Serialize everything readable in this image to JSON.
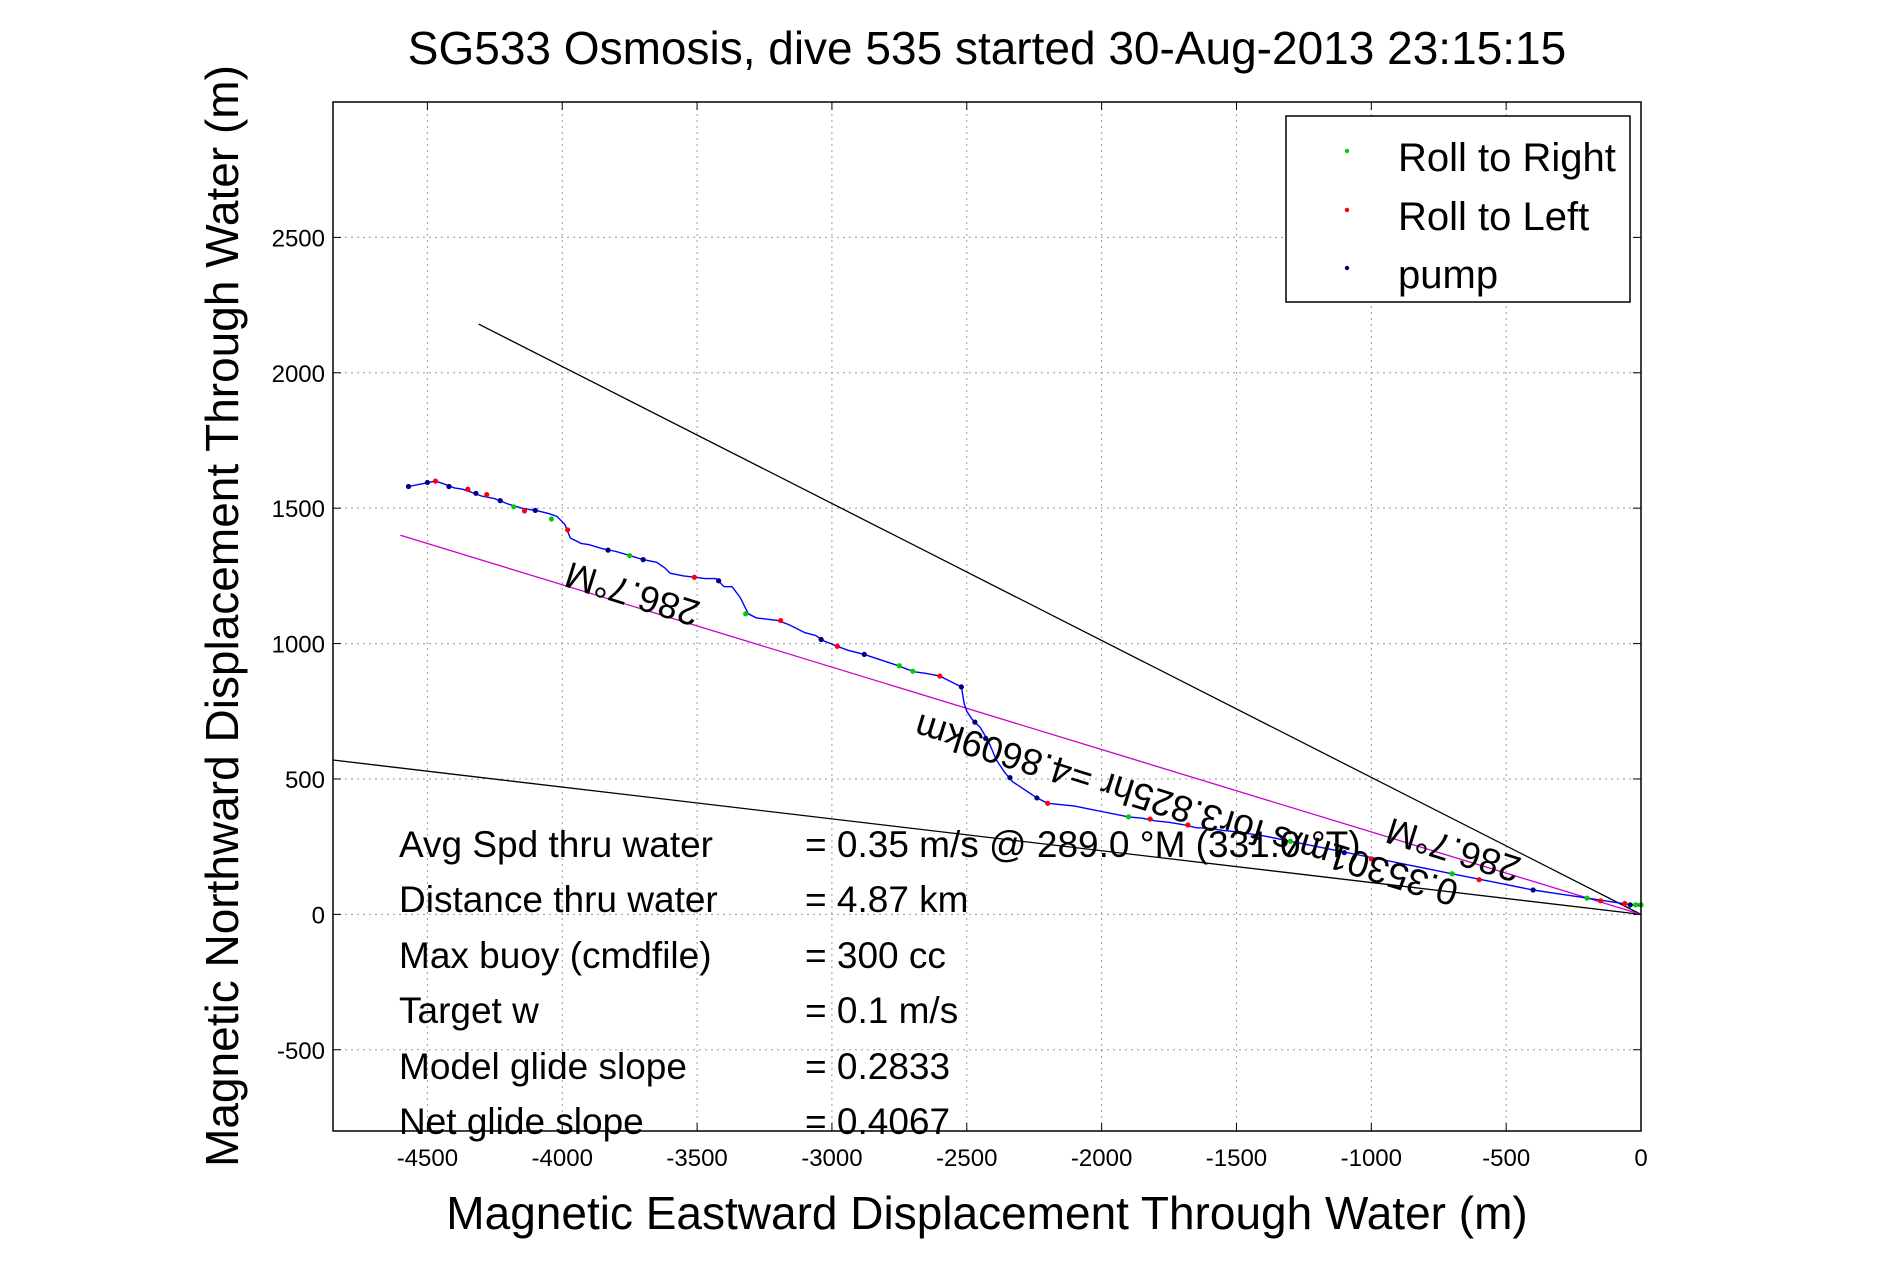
{
  "chart_data": {
    "type": "line",
    "title": "SG533 Osmosis, dive 535 started 30-Aug-2013 23:15:15",
    "xlabel": "Magnetic Eastward Displacement Through Water (m)",
    "ylabel": "Magnetic Northward Displacement Through Water (m)",
    "xlim": [
      -4850,
      0
    ],
    "ylim": [
      -800,
      3000
    ],
    "xticks": [
      -4500,
      -4000,
      -3500,
      -3000,
      -2500,
      -2000,
      -1500,
      -1000,
      -500,
      0
    ],
    "yticks": [
      -500,
      0,
      500,
      1000,
      1500,
      2000,
      2500
    ],
    "grid": true,
    "legend_position": "top-right",
    "legend": [
      {
        "label": "Roll to Right",
        "color": "#00cc00"
      },
      {
        "label": "Roll to Left",
        "color": "#ff0000"
      },
      {
        "label": "pump",
        "color": "#000080"
      }
    ],
    "track_color": "#0000ff",
    "series": [
      {
        "name": "track",
        "points": [
          [
            -4570,
            1580
          ],
          [
            -4520,
            1590
          ],
          [
            -4470,
            1600
          ],
          [
            -4440,
            1590
          ],
          [
            -4400,
            1575
          ],
          [
            -4370,
            1570
          ],
          [
            -4340,
            1560
          ],
          [
            -4300,
            1545
          ],
          [
            -4250,
            1535
          ],
          [
            -4200,
            1515
          ],
          [
            -4150,
            1500
          ],
          [
            -4090,
            1490
          ],
          [
            -4050,
            1480
          ],
          [
            -4020,
            1470
          ],
          [
            -3990,
            1440
          ],
          [
            -3970,
            1390
          ],
          [
            -3930,
            1370
          ],
          [
            -3900,
            1365
          ],
          [
            -3850,
            1350
          ],
          [
            -3800,
            1340
          ],
          [
            -3750,
            1325
          ],
          [
            -3700,
            1310
          ],
          [
            -3650,
            1300
          ],
          [
            -3620,
            1280
          ],
          [
            -3600,
            1260
          ],
          [
            -3550,
            1250
          ],
          [
            -3510,
            1245
          ],
          [
            -3470,
            1240
          ],
          [
            -3430,
            1240
          ],
          [
            -3400,
            1210
          ],
          [
            -3370,
            1210
          ],
          [
            -3340,
            1170
          ],
          [
            -3310,
            1110
          ],
          [
            -3280,
            1095
          ],
          [
            -3240,
            1090
          ],
          [
            -3200,
            1085
          ],
          [
            -3160,
            1070
          ],
          [
            -3100,
            1040
          ],
          [
            -3060,
            1030
          ],
          [
            -3030,
            1010
          ],
          [
            -2980,
            990
          ],
          [
            -2940,
            975
          ],
          [
            -2880,
            960
          ],
          [
            -2820,
            940
          ],
          [
            -2760,
            920
          ],
          [
            -2720,
            905
          ],
          [
            -2690,
            895
          ],
          [
            -2650,
            890
          ],
          [
            -2600,
            880
          ],
          [
            -2570,
            865
          ],
          [
            -2540,
            850
          ],
          [
            -2520,
            840
          ],
          [
            -2510,
            780
          ],
          [
            -2500,
            750
          ],
          [
            -2480,
            720
          ],
          [
            -2450,
            690
          ],
          [
            -2420,
            640
          ],
          [
            -2390,
            570
          ],
          [
            -2360,
            525
          ],
          [
            -2330,
            490
          ],
          [
            -2300,
            470
          ],
          [
            -2270,
            450
          ],
          [
            -2240,
            430
          ],
          [
            -2200,
            410
          ],
          [
            -2150,
            405
          ],
          [
            -2100,
            400
          ],
          [
            -2050,
            390
          ],
          [
            -2000,
            380
          ],
          [
            -1950,
            370
          ],
          [
            -1900,
            360
          ],
          [
            -1850,
            355
          ],
          [
            -1800,
            345
          ],
          [
            -1750,
            340
          ],
          [
            -1700,
            332
          ],
          [
            -1650,
            320
          ],
          [
            -1600,
            318
          ],
          [
            -1550,
            310
          ],
          [
            -1500,
            305
          ],
          [
            -1400,
            290
          ],
          [
            -1300,
            270
          ],
          [
            -1200,
            250
          ],
          [
            -1100,
            230
          ],
          [
            -1000,
            210
          ],
          [
            -900,
            190
          ],
          [
            -800,
            170
          ],
          [
            -700,
            150
          ],
          [
            -600,
            130
          ],
          [
            -500,
            110
          ],
          [
            -400,
            90
          ],
          [
            -300,
            75
          ],
          [
            -200,
            60
          ],
          [
            -100,
            45
          ],
          [
            -30,
            35
          ],
          [
            0,
            30
          ],
          [
            -10,
            35
          ],
          [
            -15,
            40
          ],
          [
            -5,
            35
          ]
        ]
      },
      {
        "name": "",
        "points": [
          [
            -4310,
            2180
          ],
          [
            0,
            0
          ]
        ]
      },
      {
        "name": "",
        "points": [
          [
            -4850,
            570
          ],
          [
            0,
            0
          ]
        ]
      },
      {
        "name": "",
        "points": [
          [
            -4600,
            1400
          ],
          [
            0,
            0
          ]
        ]
      }
    ],
    "roll_right_points": [
      [
        -4180,
        1505
      ],
      [
        -4040,
        1460
      ],
      [
        -3750,
        1325
      ],
      [
        -3320,
        1110
      ],
      [
        -2750,
        918
      ],
      [
        -2700,
        898
      ],
      [
        -1900,
        360
      ],
      [
        -1300,
        270
      ],
      [
        -700,
        150
      ],
      [
        -200,
        60
      ],
      [
        -20,
        35
      ],
      [
        0,
        35
      ]
    ],
    "roll_left_points": [
      [
        -4470,
        1600
      ],
      [
        -4350,
        1570
      ],
      [
        -4280,
        1550
      ],
      [
        -4140,
        1490
      ],
      [
        -3980,
        1420
      ],
      [
        -3510,
        1245
      ],
      [
        -3190,
        1085
      ],
      [
        -2980,
        990
      ],
      [
        -2600,
        880
      ],
      [
        -2200,
        410
      ],
      [
        -1820,
        352
      ],
      [
        -1680,
        330
      ],
      [
        -1000,
        205
      ],
      [
        -600,
        128
      ],
      [
        -150,
        50
      ],
      [
        -60,
        40
      ]
    ],
    "pump_points": [
      [
        -4570,
        1580
      ],
      [
        -4500,
        1595
      ],
      [
        -4420,
        1580
      ],
      [
        -4320,
        1555
      ],
      [
        -4230,
        1528
      ],
      [
        -4100,
        1492
      ],
      [
        -3830,
        1345
      ],
      [
        -3700,
        1310
      ],
      [
        -3420,
        1232
      ],
      [
        -3040,
        1015
      ],
      [
        -2880,
        960
      ],
      [
        -2520,
        840
      ],
      [
        -2470,
        710
      ],
      [
        -2430,
        650
      ],
      [
        -2340,
        505
      ],
      [
        -2240,
        430
      ],
      [
        -1100,
        228
      ],
      [
        -400,
        90
      ],
      [
        -40,
        35
      ]
    ],
    "annotations": [
      {
        "text": "286.7°M",
        "data_anchor": [
          -3500,
          1300
        ]
      },
      {
        "text": "0.35301m/s for3.825hr =4.8609km",
        "data_anchor": [
          -1800,
          500
        ]
      },
      {
        "text": "286.7°M",
        "data_anchor": [
          -800,
          320
        ]
      }
    ]
  },
  "stats": [
    {
      "label": "Avg Spd thru water",
      "value": "=  0.35 m/s @ 289.0 °M (331.0 °T)"
    },
    {
      "label": "Distance thru water",
      "value": "=  4.87 km"
    },
    {
      "label": "Max buoy (cmdfile)",
      "value": "= 300 cc"
    },
    {
      "label": "Target w",
      "value": "= 0.1 m/s"
    },
    {
      "label": "Model glide slope",
      "value": "= 0.2833"
    },
    {
      "label": "Net glide slope",
      "value": "= 0.4067"
    }
  ]
}
